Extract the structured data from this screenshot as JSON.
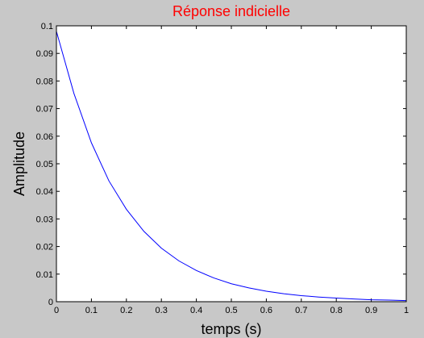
{
  "figure": {
    "background_color": "#c8c8c8",
    "axes_background_color": "#ffffff"
  },
  "chart_data": {
    "type": "line",
    "title": "Réponse indicielle",
    "title_color": "#ff0000",
    "xlabel": "temps (s)",
    "ylabel": "Amplitude",
    "xlim": [
      0,
      1
    ],
    "ylim": [
      0,
      0.1
    ],
    "xticks": [
      "0",
      "0.1",
      "0.2",
      "0.3",
      "0.4",
      "0.5",
      "0.6",
      "0.7",
      "0.8",
      "0.9",
      "1"
    ],
    "yticks": [
      "0",
      "0.01",
      "0.02",
      "0.03",
      "0.04",
      "0.05",
      "0.06",
      "0.07",
      "0.08",
      "0.09",
      "0.1"
    ],
    "grid": false,
    "series": [
      {
        "color": "#0000ff",
        "x": [
          0,
          0,
          0.02,
          0.05,
          0.1,
          0.15,
          0.2,
          0.25,
          0.3,
          0.35,
          0.4,
          0.45,
          0.5,
          0.55,
          0.6,
          0.65,
          0.7,
          0.75,
          0.8,
          0.85,
          0.9,
          0.95,
          1.0
        ],
        "y": [
          0,
          0.098,
          0.089,
          0.0755,
          0.0576,
          0.0438,
          0.0335,
          0.0255,
          0.0194,
          0.0148,
          0.0113,
          0.0086,
          0.0065,
          0.005,
          0.0038,
          0.0029,
          0.0022,
          0.0017,
          0.0013,
          0.001,
          0.0007,
          0.0006,
          0.0004
        ]
      }
    ]
  }
}
